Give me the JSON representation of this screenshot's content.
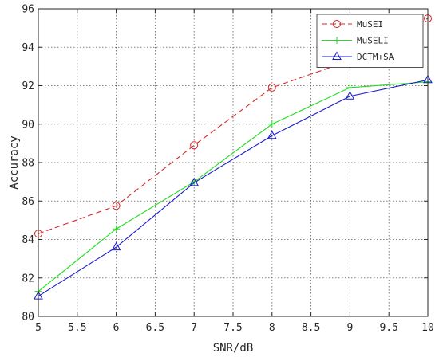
{
  "chart_data": {
    "type": "line",
    "title": "",
    "xlabel": "SNR/dB",
    "ylabel": "Accuracy",
    "xlim": [
      5,
      10
    ],
    "ylim": [
      80,
      96
    ],
    "xticks": [
      5,
      5.5,
      6,
      6.5,
      7,
      7.5,
      8,
      8.5,
      9,
      9.5,
      10
    ],
    "xtick_labels": [
      "5",
      "5.5",
      "6",
      "6.5",
      "7",
      "7.5",
      "8",
      "8.5",
      "9",
      "9.5",
      "10"
    ],
    "yticks": [
      80,
      82,
      84,
      86,
      88,
      90,
      92,
      94,
      96
    ],
    "ytick_labels": [
      "80",
      "82",
      "84",
      "86",
      "88",
      "90",
      "92",
      "94",
      "96"
    ],
    "grid": true,
    "legend_position": "top-right",
    "x": [
      5,
      6,
      7,
      8,
      9,
      10
    ],
    "series": [
      {
        "name": "MuSEI",
        "values": [
          84.3,
          85.75,
          88.9,
          91.9,
          93.3,
          95.5
        ],
        "color": "#d62728",
        "dash": "dashed",
        "marker": "circle"
      },
      {
        "name": "MuSELI",
        "values": [
          81.3,
          84.55,
          87.0,
          90.0,
          91.9,
          92.2
        ],
        "color": "#22dd22",
        "dash": "solid",
        "marker": "plus"
      },
      {
        "name": "DCTM+SA",
        "values": [
          81.05,
          83.6,
          86.95,
          89.4,
          91.45,
          92.3
        ],
        "color": "#1a1acc",
        "dash": "solid",
        "marker": "triangle"
      }
    ]
  }
}
